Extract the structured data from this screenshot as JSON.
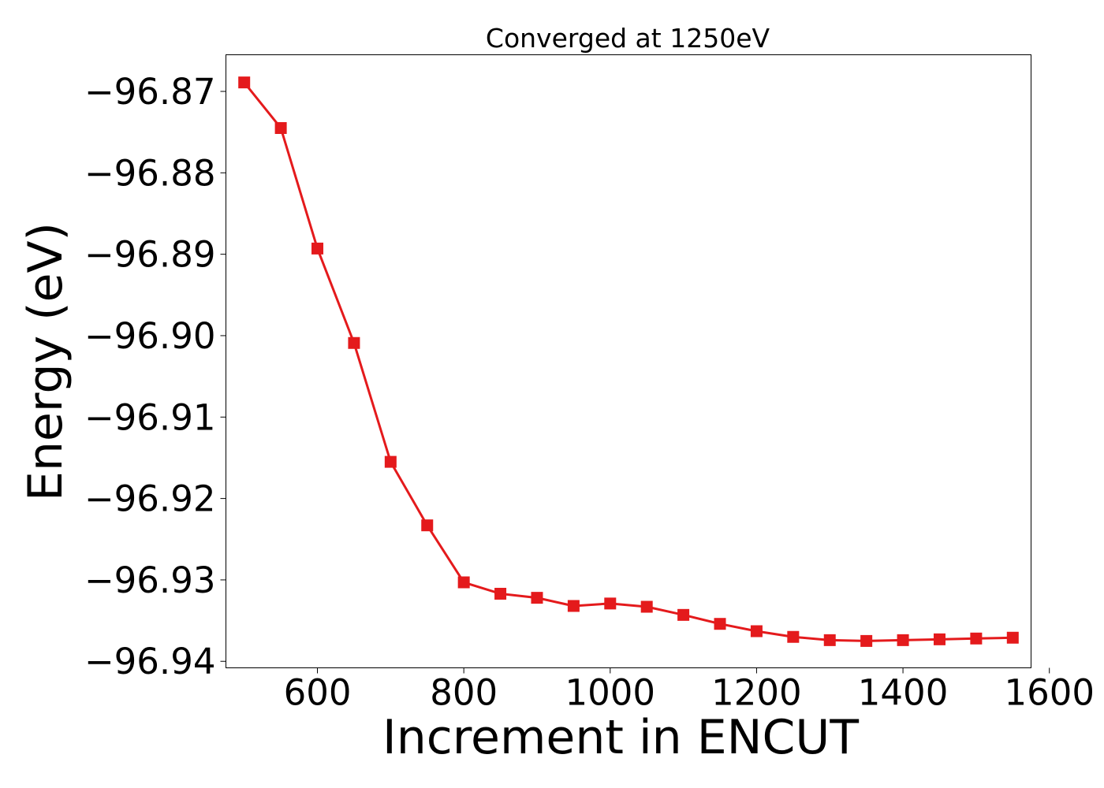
{
  "chart_data": {
    "type": "line",
    "title": "Converged at 1250eV",
    "xlabel": "Increment in ENCUT",
    "ylabel": "Energy (eV)",
    "xlim": [
      475,
      1575
    ],
    "ylim": [
      -96.9408,
      -96.8655
    ],
    "xticks": [
      600,
      800,
      1000,
      1200,
      1400,
      1600
    ],
    "xtick_labels": [
      "600",
      "800",
      "1000",
      "1200",
      "1400",
      "1600"
    ],
    "yticks": [
      -96.87,
      -96.88,
      -96.89,
      -96.9,
      -96.91,
      -96.92,
      -96.93,
      -96.94
    ],
    "ytick_labels": [
      "−96.87",
      "−96.88",
      "−96.89",
      "−96.90",
      "−96.91",
      "−96.92",
      "−96.93",
      "−96.94"
    ],
    "grid": false,
    "series": [
      {
        "color": "#e41a1c",
        "marker": "square",
        "x": [
          500,
          550,
          600,
          650,
          700,
          750,
          800,
          850,
          900,
          950,
          1000,
          1050,
          1100,
          1150,
          1200,
          1250,
          1300,
          1350,
          1400,
          1450,
          1500,
          1550
        ],
        "y": [
          -96.8689,
          -96.8745,
          -96.8893,
          -96.9009,
          -96.9155,
          -96.9233,
          -96.9303,
          -96.9317,
          -96.9322,
          -96.9332,
          -96.9329,
          -96.9333,
          -96.9343,
          -96.9354,
          -96.9363,
          -96.937,
          -96.9374,
          -96.9375,
          -96.9374,
          -96.9373,
          -96.9372,
          -96.9371
        ]
      }
    ]
  }
}
